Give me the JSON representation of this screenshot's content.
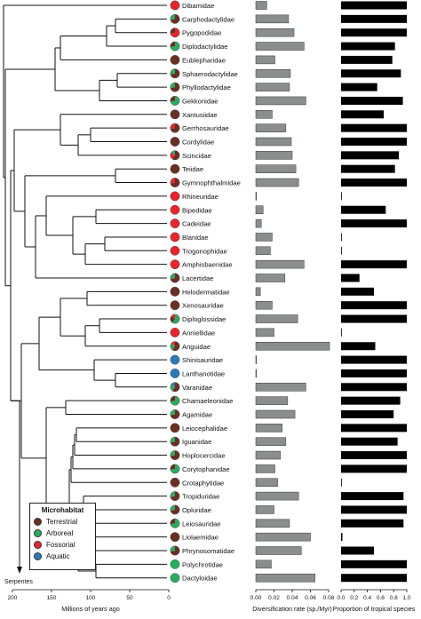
{
  "microhabitat_colors": {
    "terrestrial": "#6b2e23",
    "arboreal": "#27ad60",
    "fossorial": "#e8242c",
    "aquatic": "#2a7ab8"
  },
  "legend": {
    "title": "Microhabitat",
    "items": [
      {
        "label": "Terrestrial",
        "color": "#6b2e23"
      },
      {
        "label": "Arboreal",
        "color": "#27ad60"
      },
      {
        "label": "Fossorial",
        "color": "#e8242c"
      },
      {
        "label": "Aquatic",
        "color": "#2a7ab8"
      }
    ]
  },
  "serpentes_label": "Serpentes",
  "chart_data": [
    {
      "type": "tree",
      "xlabel": "Millions of years ago",
      "ticks": [
        200,
        150,
        100,
        50,
        0
      ],
      "taxa": [
        "Dibamidae",
        "Carphodactylidae",
        "Pygopodidae",
        "Diplodactylidae",
        "Eublepharidae",
        "Sphaerodactylidae",
        "Phyllodactylidae",
        "Gekkonidae",
        "Xantusiidae",
        "Gerrhosauridae",
        "Cordylidae",
        "Scincidae",
        "Teiidae",
        "Gymnophthalmidae",
        "Rhineuridae",
        "Bipedidae",
        "Cadeidae",
        "Blanidae",
        "Trogonophidae",
        "Amphisbaenidae",
        "Lacertidae",
        "Helodermatidae",
        "Xenosauridae",
        "Diploglossidae",
        "Anniellidae",
        "Anguidae",
        "Shinisauridae",
        "Lanthanotidae",
        "Varanidae",
        "Chamaeleonidae",
        "Agamidae",
        "Leiocephalidae",
        "Iguanidae",
        "Hoplocercidae",
        "Corytophanidae",
        "Crotaphytidae",
        "Tropiduridae",
        "Opluridae",
        "Leiosauridae",
        "Liolaemidae",
        "Phrynosomatidae",
        "Polychrotidae",
        "Dactyloidae"
      ],
      "microhabitat": [
        "fossorial",
        "terrestrial+arboreal",
        "fossorial+terrestrial",
        "arboreal+terrestrial",
        "terrestrial",
        "terrestrial+arboreal",
        "terrestrial+arboreal",
        "arboreal+terrestrial",
        "terrestrial",
        "terrestrial+fossorial",
        "terrestrial",
        "terrestrial+fossorial+arboreal",
        "terrestrial",
        "terrestrial+fossorial",
        "fossorial",
        "fossorial",
        "fossorial",
        "fossorial",
        "fossorial",
        "fossorial",
        "terrestrial+arboreal",
        "terrestrial",
        "terrestrial",
        "arboreal+terrestrial+fossorial",
        "fossorial",
        "terrestrial+arboreal+fossorial",
        "aquatic",
        "aquatic",
        "terrestrial+arboreal+aquatic",
        "arboreal+terrestrial",
        "terrestrial+arboreal",
        "terrestrial",
        "terrestrial+arboreal",
        "terrestrial+arboreal",
        "arboreal+terrestrial",
        "terrestrial",
        "terrestrial+arboreal",
        "terrestrial+arboreal",
        "arboreal+terrestrial",
        "terrestrial",
        "terrestrial+arboreal",
        "arboreal",
        "arboreal"
      ]
    },
    {
      "type": "bar",
      "xlabel": "Diversification rate (sp./Myr)",
      "xlim": [
        0,
        0.08
      ],
      "ticks": [
        "0.00",
        "0.02",
        "0.04",
        "0.06",
        "0.08"
      ],
      "categories_ref": "taxa",
      "values": [
        0.012,
        0.036,
        0.042,
        0.053,
        0.021,
        0.038,
        0.037,
        0.055,
        0.018,
        0.033,
        0.039,
        0.04,
        0.044,
        0.047,
        0.0005,
        0.008,
        0.006,
        0.018,
        0.016,
        0.053,
        0.032,
        0.005,
        0.018,
        0.046,
        0.02,
        0.081,
        0.0005,
        0.0005,
        0.055,
        0.035,
        0.043,
        0.029,
        0.033,
        0.027,
        0.021,
        0.024,
        0.047,
        0.02,
        0.037,
        0.06,
        0.05,
        0.017,
        0.065
      ]
    },
    {
      "type": "bar",
      "xlabel": "Proportion of tropical species",
      "xlim": [
        0,
        1.0
      ],
      "ticks": [
        "0.0",
        "0.2",
        "0.4",
        "0.6",
        "0.8",
        "1.0"
      ],
      "categories_ref": "taxa",
      "values": [
        1.0,
        1.0,
        1.0,
        0.82,
        0.78,
        0.91,
        0.55,
        0.94,
        0.65,
        1.0,
        1.0,
        0.88,
        0.82,
        1.0,
        0.0,
        0.68,
        1.0,
        0.0,
        0.0,
        1.0,
        0.28,
        0.5,
        1.0,
        1.0,
        0.0,
        0.52,
        1.0,
        1.0,
        1.0,
        0.9,
        0.8,
        1.0,
        0.86,
        1.0,
        1.0,
        0.0,
        0.95,
        1.0,
        0.95,
        0.02,
        0.5,
        1.0,
        1.0
      ]
    }
  ]
}
